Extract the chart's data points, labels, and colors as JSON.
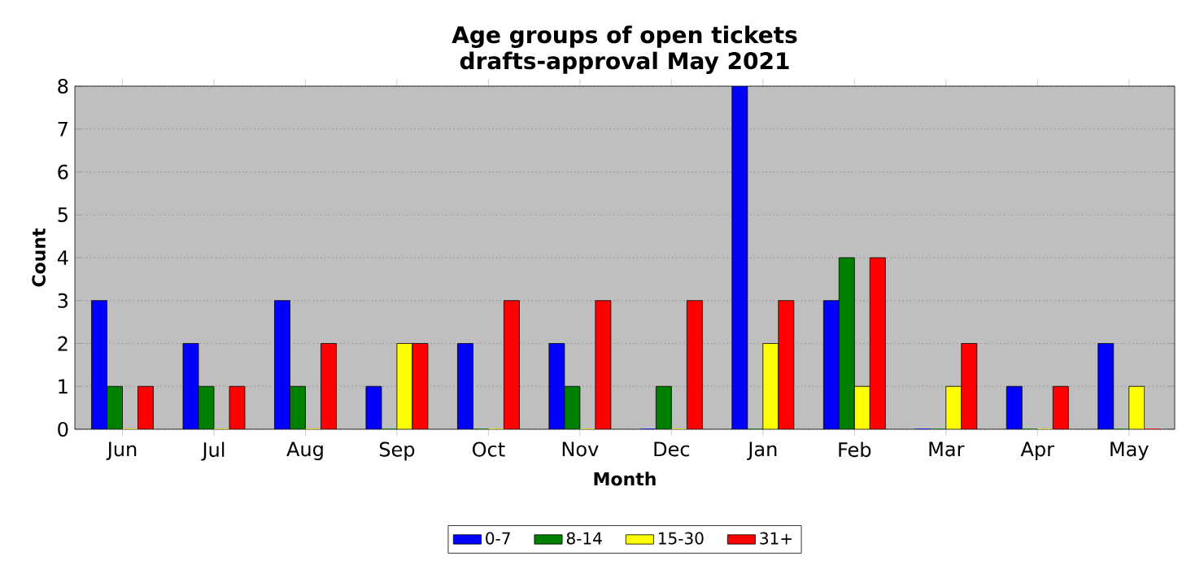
{
  "chart_data": {
    "type": "bar",
    "title": "Age groups of open tickets",
    "subtitle": "drafts-approval May 2021",
    "xlabel": "Month",
    "ylabel": "Count",
    "categories": [
      "Jun",
      "Jul",
      "Aug",
      "Sep",
      "Oct",
      "Nov",
      "Dec",
      "Jan",
      "Feb",
      "Mar",
      "Apr",
      "May"
    ],
    "series": [
      {
        "name": "0-7",
        "color": "#0000ff",
        "values": [
          3,
          2,
          3,
          1,
          2,
          2,
          0,
          8,
          3,
          0,
          1,
          2
        ]
      },
      {
        "name": "8-14",
        "color": "#008000",
        "values": [
          1,
          1,
          1,
          0,
          0,
          1,
          1,
          0,
          4,
          0,
          0,
          0
        ]
      },
      {
        "name": "15-30",
        "color": "#ffff00",
        "values": [
          0,
          0,
          0,
          2,
          0,
          0,
          0,
          2,
          1,
          1,
          0,
          1
        ]
      },
      {
        "name": "31+",
        "color": "#ff0000",
        "values": [
          1,
          1,
          2,
          2,
          3,
          3,
          3,
          3,
          4,
          2,
          1,
          0
        ]
      }
    ],
    "ylim": [
      0,
      8
    ],
    "yticks": [
      0,
      1,
      2,
      3,
      4,
      5,
      6,
      7,
      8
    ],
    "grid": "y",
    "legend": "bottom"
  }
}
